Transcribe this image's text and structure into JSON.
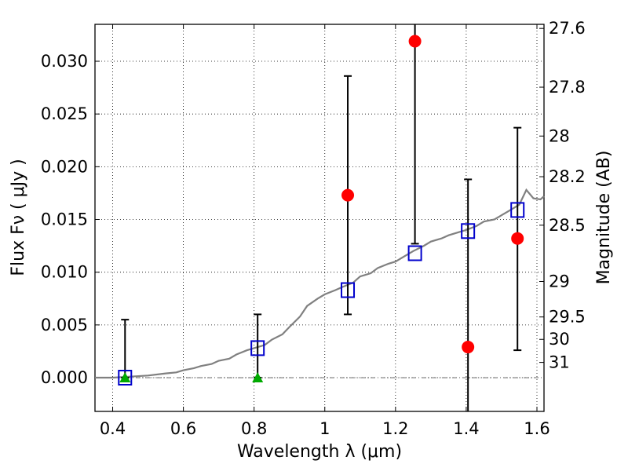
{
  "chart_data": {
    "type": "scatter",
    "xlabel": "Wavelength  λ (μm)",
    "ylabel": "Flux  Fν  ( μJy )",
    "ylabel_right": "Magnitude (AB)",
    "xlim": [
      0.35,
      1.62
    ],
    "ylim": [
      -0.0032,
      0.0335
    ],
    "grid": true,
    "x_ticks": [
      {
        "value": 0.4,
        "label": "0.4"
      },
      {
        "value": 0.6,
        "label": "0.6"
      },
      {
        "value": 0.8,
        "label": "0.8"
      },
      {
        "value": 1.0,
        "label": "1"
      },
      {
        "value": 1.2,
        "label": "1.2"
      },
      {
        "value": 1.4,
        "label": "1.4"
      },
      {
        "value": 1.6,
        "label": "1.6"
      }
    ],
    "y_ticks": [
      {
        "value": 0.0,
        "label": "0.000"
      },
      {
        "value": 0.005,
        "label": "0.005"
      },
      {
        "value": 0.01,
        "label": "0.010"
      },
      {
        "value": 0.015,
        "label": "0.015"
      },
      {
        "value": 0.02,
        "label": "0.020"
      },
      {
        "value": 0.025,
        "label": "0.025"
      },
      {
        "value": 0.03,
        "label": "0.030"
      }
    ],
    "right_ticks": [
      {
        "label": "27.6",
        "mag": 27.6
      },
      {
        "label": "27.8",
        "mag": 27.8
      },
      {
        "label": "28",
        "mag": 28.0
      },
      {
        "label": "28.2",
        "mag": 28.2
      },
      {
        "label": "28.5",
        "mag": 28.5
      },
      {
        "label": "29",
        "mag": 29.0
      },
      {
        "label": "29.5",
        "mag": 29.5
      },
      {
        "label": "30",
        "mag": 30.0
      },
      {
        "label": "31",
        "mag": 31.0
      }
    ],
    "colors": {
      "model": "#808080",
      "observed": "#ff0000",
      "model_band": "#0000cc",
      "upper_limit": "#00aa00",
      "errorbar": "#000000",
      "zero_line": "#555555"
    },
    "series": [
      {
        "role": "model_spectrum",
        "x": [
          0.35,
          0.4,
          0.45,
          0.5,
          0.55,
          0.58,
          0.6,
          0.63,
          0.65,
          0.68,
          0.7,
          0.73,
          0.75,
          0.78,
          0.8,
          0.83,
          0.85,
          0.88,
          0.9,
          0.93,
          0.95,
          0.98,
          1.0,
          1.03,
          1.05,
          1.08,
          1.1,
          1.13,
          1.15,
          1.18,
          1.2,
          1.23,
          1.25,
          1.28,
          1.3,
          1.33,
          1.35,
          1.38,
          1.4,
          1.43,
          1.45,
          1.48,
          1.5,
          1.52,
          1.55,
          1.57,
          1.59,
          1.61,
          1.62
        ],
        "y": [
          0.0,
          0.0,
          0.0001,
          0.0002,
          0.0004,
          0.0005,
          0.0007,
          0.0009,
          0.0011,
          0.0013,
          0.0016,
          0.0018,
          0.0022,
          0.0026,
          0.0028,
          0.0031,
          0.0036,
          0.0041,
          0.0048,
          0.0058,
          0.0068,
          0.0075,
          0.0079,
          0.0083,
          0.0086,
          0.009,
          0.0096,
          0.0099,
          0.0104,
          0.0108,
          0.011,
          0.0116,
          0.012,
          0.0125,
          0.0129,
          0.0132,
          0.0135,
          0.0138,
          0.014,
          0.0144,
          0.0148,
          0.015,
          0.0154,
          0.0158,
          0.0164,
          0.0178,
          0.017,
          0.0169,
          0.0172
        ]
      },
      {
        "role": "observed_flux",
        "x": [
          1.065,
          1.255,
          1.405,
          1.545
        ],
        "y": [
          0.0173,
          0.0319,
          0.0029,
          0.0132
        ],
        "err_low": [
          0.006,
          0.0127,
          -0.0033,
          0.0026
        ],
        "err_high": [
          0.0286,
          0.0335,
          0.0188,
          0.0237
        ]
      },
      {
        "role": "upper_limits",
        "x": [
          0.435,
          0.81
        ],
        "y": [
          0.0,
          0.0
        ],
        "err_low": [
          0.0,
          0.0
        ],
        "err_high": [
          0.0055,
          0.006
        ]
      },
      {
        "role": "model_band_flux",
        "x": [
          0.435,
          0.81,
          1.065,
          1.255,
          1.405,
          1.545
        ],
        "y": [
          0.0,
          0.0028,
          0.0083,
          0.0118,
          0.0139,
          0.0159
        ]
      }
    ]
  }
}
